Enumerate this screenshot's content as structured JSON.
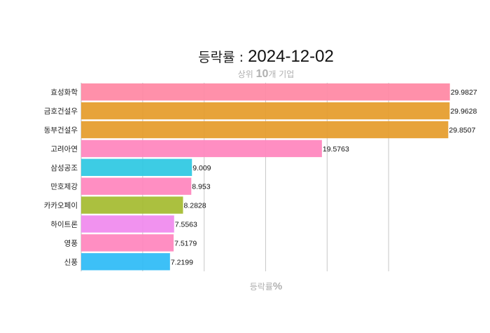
{
  "chart_data": {
    "type": "bar",
    "orientation": "horizontal",
    "title": {
      "label": "등락률 : ",
      "date": "2024-12-02"
    },
    "subtitle": {
      "prefix": "상위 ",
      "number": "10",
      "suffix": "개 기업"
    },
    "xlabel": {
      "text": "등락률",
      "unit": "%"
    },
    "xlim": [
      0,
      30
    ],
    "gridlines": [
      5,
      10,
      15,
      20,
      25
    ],
    "grid": true,
    "legend": "none",
    "categories": [
      "효성화학",
      "금호건설우",
      "동부건설우",
      "고려아연",
      "삼성공조",
      "만호제강",
      "카카오페이",
      "하이트론",
      "영풍",
      "신풍"
    ],
    "values": [
      29.9827,
      29.9628,
      29.8507,
      19.5763,
      9.009,
      8.953,
      8.2828,
      7.5563,
      7.5179,
      7.2199
    ],
    "value_labels": [
      "29.9827",
      "29.9628",
      "29.8507",
      "19.5763",
      "9.009",
      "8.953",
      "8.2828",
      "7.5563",
      "7.5179",
      "7.2199"
    ],
    "colors": [
      "#ff8aa5",
      "#e69e2f",
      "#e69e2f",
      "#ff88bf",
      "#33c9e3",
      "#ff88bf",
      "#a6bd35",
      "#f08cee",
      "#ff88bf",
      "#33bdf7"
    ]
  }
}
